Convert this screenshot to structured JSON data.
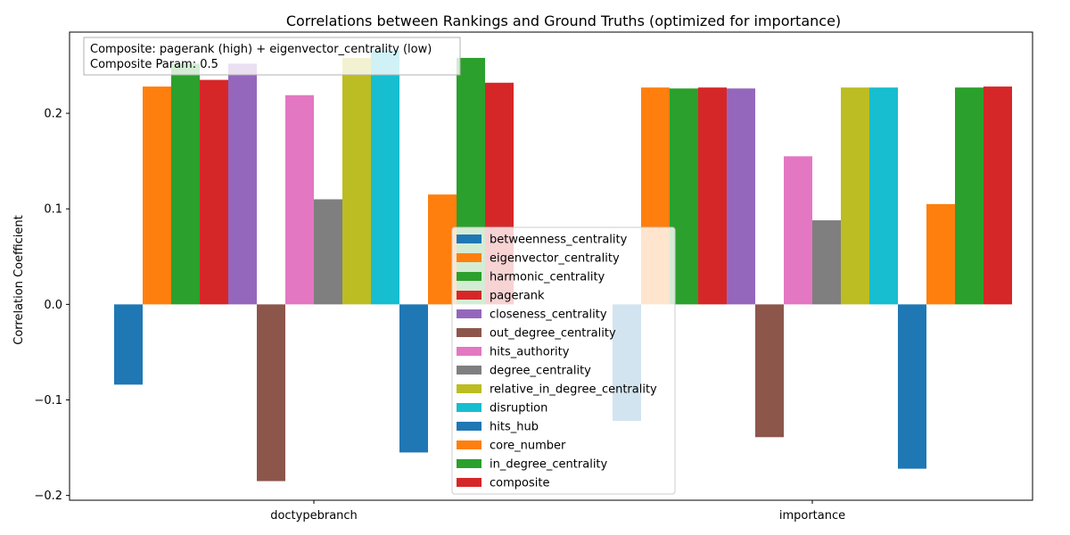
{
  "chart_data": {
    "type": "bar",
    "title": "Correlations between Rankings and Ground Truths (optimized for importance)",
    "xlabel": "",
    "ylabel": "Correlation Coefficient",
    "ylim": [
      -0.205,
      0.285
    ],
    "yticks": [
      -0.2,
      -0.1,
      0.0,
      0.1,
      0.2
    ],
    "ytick_labels": [
      "−0.2",
      "−0.1",
      "0.0",
      "0.1",
      "0.2"
    ],
    "categories": [
      "doctypebranch",
      "importance"
    ],
    "grid": false,
    "legend_position": "center-bottom",
    "annotation": {
      "line1": "Composite: pagerank (high) + eigenvector_centrality (low)",
      "line2": "Composite Param: 0.5"
    },
    "series": [
      {
        "name": "betweenness_centrality",
        "color": "#1f77b4",
        "values": [
          -0.084,
          -0.122
        ]
      },
      {
        "name": "eigenvector_centrality",
        "color": "#ff7f0e",
        "values": [
          0.228,
          0.227
        ]
      },
      {
        "name": "harmonic_centrality",
        "color": "#2ca02c",
        "values": [
          0.252,
          0.226
        ]
      },
      {
        "name": "pagerank",
        "color": "#d62728",
        "values": [
          0.235,
          0.227
        ]
      },
      {
        "name": "closeness_centrality",
        "color": "#9467bd",
        "values": [
          0.252,
          0.226
        ]
      },
      {
        "name": "out_degree_centrality",
        "color": "#8c564b",
        "values": [
          -0.185,
          -0.139
        ]
      },
      {
        "name": "hits_authority",
        "color": "#e377c2",
        "values": [
          0.219,
          0.155
        ]
      },
      {
        "name": "degree_centrality",
        "color": "#7f7f7f",
        "values": [
          0.11,
          0.088
        ]
      },
      {
        "name": "relative_in_degree_centrality",
        "color": "#bcbd22",
        "values": [
          0.258,
          0.227
        ]
      },
      {
        "name": "disruption",
        "color": "#17becf",
        "values": [
          0.266,
          0.227
        ]
      },
      {
        "name": "hits_hub",
        "color": "#1f77b4",
        "values": [
          -0.155,
          -0.172
        ]
      },
      {
        "name": "core_number",
        "color": "#ff7f0e",
        "values": [
          0.115,
          0.105
        ]
      },
      {
        "name": "in_degree_centrality",
        "color": "#2ca02c",
        "values": [
          0.258,
          0.227
        ]
      },
      {
        "name": "composite",
        "color": "#d62728",
        "values": [
          0.232,
          0.228
        ]
      }
    ]
  }
}
